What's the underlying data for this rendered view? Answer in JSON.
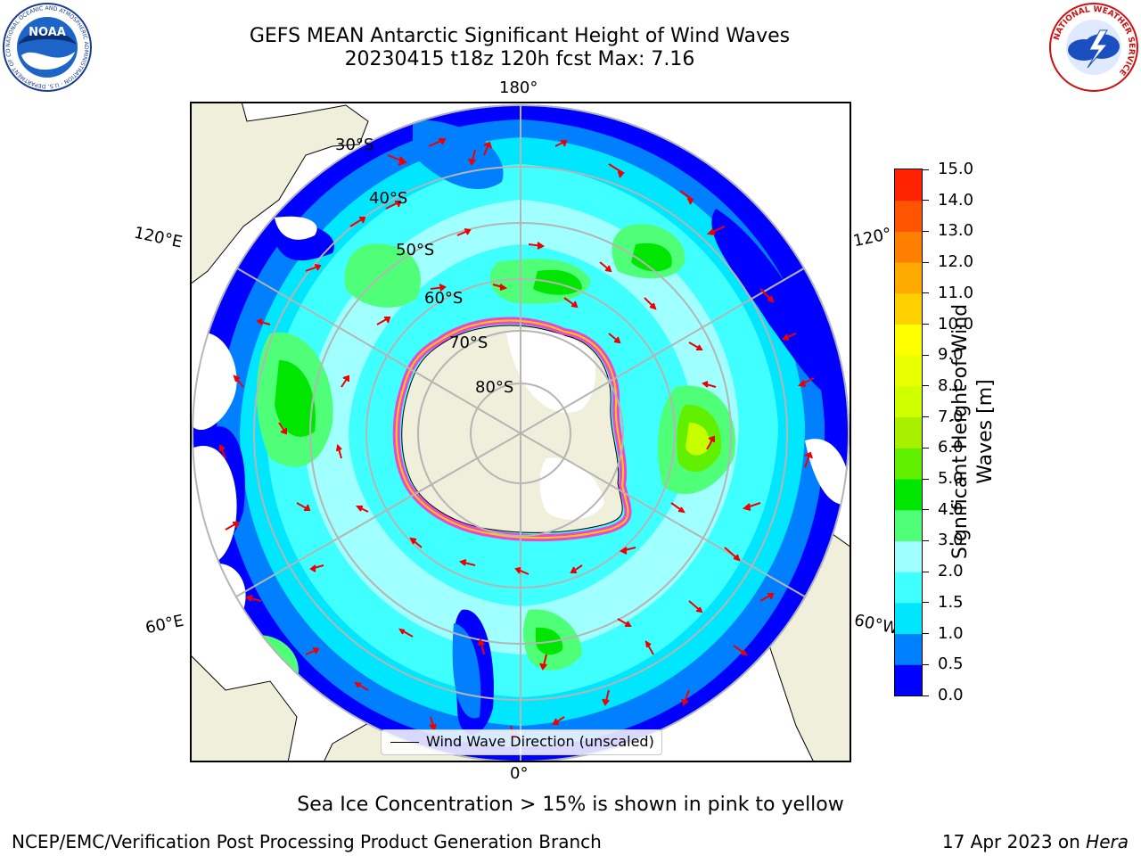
{
  "header": {
    "title_line1": "GEFS MEAN Antarctic Significant Height of Wind Waves",
    "title_line2": "20230415 t18z 120h fcst   Max: 7.16"
  },
  "logos": {
    "noaa_text": "NOAA",
    "noaa_ring": "NATIONAL OCEANIC AND ATMOSPHERIC ADMINISTRATION · U.S. DEPARTMENT OF COMMERCE",
    "nws_ring": "NATIONAL WEATHER SERVICE"
  },
  "map": {
    "longitude_labels": [
      "180°",
      "120°E",
      "120°",
      "60°E",
      "60°W",
      "0°"
    ],
    "latitude_labels": [
      "30°S",
      "40°S",
      "50°S",
      "60°S",
      "70°S",
      "80°S"
    ],
    "legend_label": "Wind Wave Direction (unscaled)",
    "ocean_colors": {
      "deep": "#0000ff",
      "low": "#0080ff",
      "mid": "#00ffff",
      "high": "#9fffff",
      "green": "#44ff44",
      "yellowgreen": "#c8ff00"
    },
    "land_color": "#efefdb",
    "ice_edge_color": "#ff33cc",
    "arrow_color": "#ee0000"
  },
  "colorbar": {
    "label_line1": "Significant Height of Wind",
    "label_line2": "Waves [m]",
    "ticks": [
      "0.0",
      "0.5",
      "1.0",
      "1.5",
      "2.0",
      "3.0",
      "4.0",
      "5.0",
      "6.0",
      "7.0",
      "8.0",
      "9.0",
      "10.0",
      "11.0",
      "12.0",
      "13.0",
      "14.0",
      "15.0"
    ],
    "colors": [
      "#0000ff",
      "#0080ff",
      "#00e6ff",
      "#40ffff",
      "#a0ffff",
      "#50ff78",
      "#00e600",
      "#60f000",
      "#a8f000",
      "#d0ff00",
      "#e8ff00",
      "#ffff00",
      "#ffd000",
      "#ffaa00",
      "#ff8000",
      "#ff5500",
      "#ff2200"
    ]
  },
  "notes": {
    "sea_ice": "Sea Ice Concentration > 15% is shown in pink to yellow"
  },
  "footer": {
    "branch": "NCEP/EMC/Verification Post Processing Product Generation Branch",
    "date": "17 Apr 2023 on",
    "host": "Hera"
  }
}
